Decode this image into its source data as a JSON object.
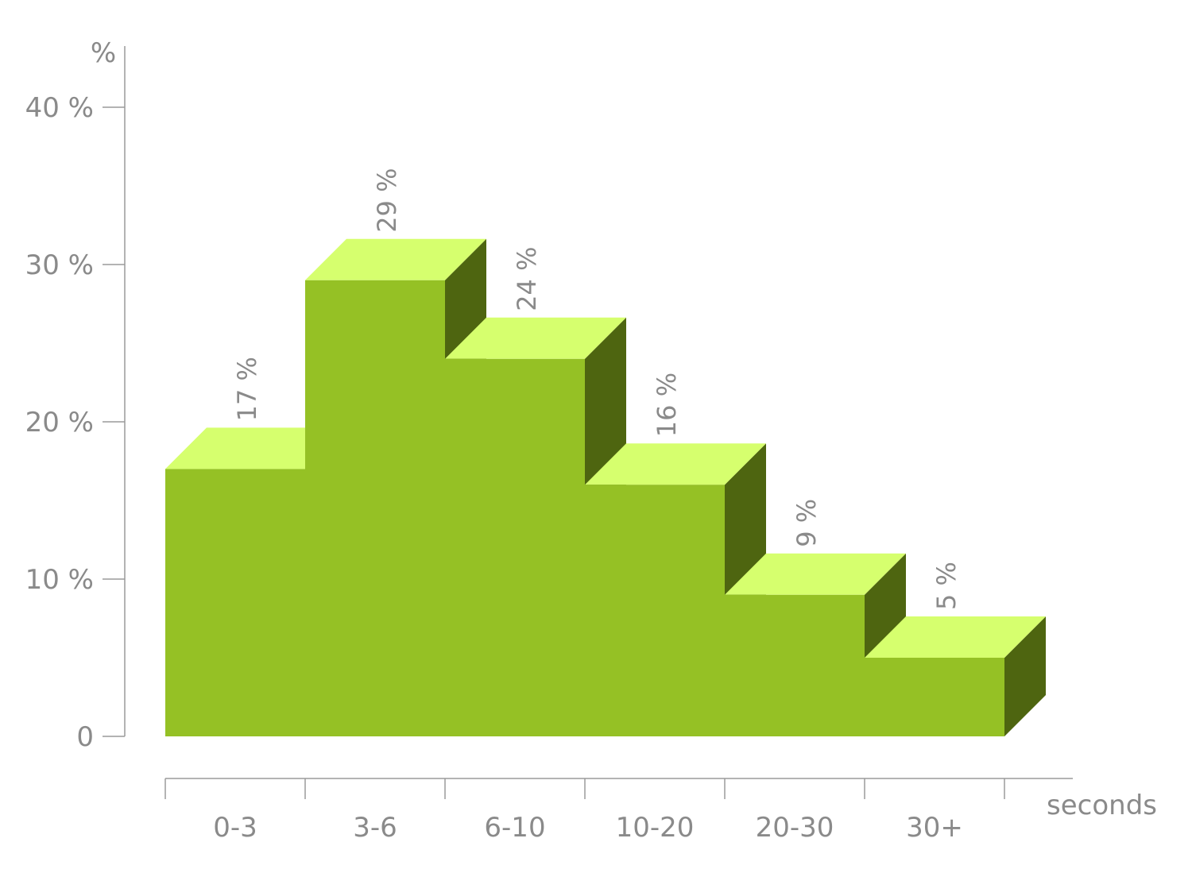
{
  "chart_data": {
    "type": "bar",
    "style": "3d-stepped-histogram",
    "categories": [
      "0-3",
      "3-6",
      "6-10",
      "10-20",
      "20-30",
      "30+"
    ],
    "values": [
      17,
      29,
      24,
      16,
      9,
      5
    ],
    "data_labels": [
      "17 %",
      "29 %",
      "24 %",
      "16 %",
      "9 %",
      "5 %"
    ],
    "ylim": [
      0,
      40
    ],
    "y_ticks": [
      {
        "value": 0,
        "label": "0"
      },
      {
        "value": 10,
        "label": "10 %"
      },
      {
        "value": 20,
        "label": "20 %"
      },
      {
        "value": 30,
        "label": "30 %"
      },
      {
        "value": 40,
        "label": "40 %"
      }
    ],
    "ylabel": "%",
    "xlabel": "seconds",
    "grid": false,
    "colors": {
      "front": "#95c125",
      "top": "#d6ff6e",
      "side": "#4e6510",
      "axis": "#9a9a9a",
      "text": "#8a8a8a"
    }
  }
}
